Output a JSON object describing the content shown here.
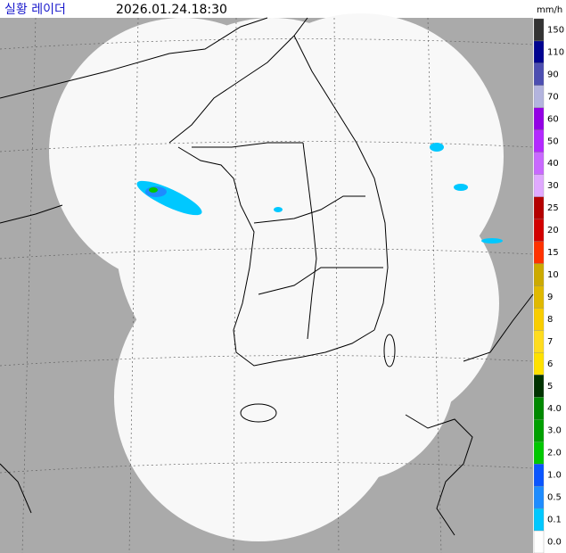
{
  "header": {
    "title": "실황 레이더",
    "timestamp": "2026.01.24.18:30",
    "unit": "mm/h"
  },
  "legend": [
    {
      "label": "150",
      "color": "#333333"
    },
    {
      "label": "110",
      "color": "#000390"
    },
    {
      "label": "90",
      "color": "#4c4eb1"
    },
    {
      "label": "70",
      "color": "#b3b4de"
    },
    {
      "label": "60",
      "color": "#9300e4"
    },
    {
      "label": "50",
      "color": "#b329ff"
    },
    {
      "label": "40",
      "color": "#c969ff"
    },
    {
      "label": "30",
      "color": "#e0a9ff"
    },
    {
      "label": "25",
      "color": "#b40000"
    },
    {
      "label": "20",
      "color": "#d20000"
    },
    {
      "label": "15",
      "color": "#ff3200"
    },
    {
      "label": "10",
      "color": "#ccaa00"
    },
    {
      "label": "9",
      "color": "#e0b900"
    },
    {
      "label": "8",
      "color": "#f9cd00"
    },
    {
      "label": "7",
      "color": "#ffdc1f"
    },
    {
      "label": "6",
      "color": "#ffe100"
    },
    {
      "label": "5",
      "color": "#003300"
    },
    {
      "label": "4.0",
      "color": "#008800"
    },
    {
      "label": "3.0",
      "color": "#00a000"
    },
    {
      "label": "2.0",
      "color": "#00c800"
    },
    {
      "label": "1.0",
      "color": "#0a55ff"
    },
    {
      "label": "0.5",
      "color": "#1e8cff"
    },
    {
      "label": "0.1",
      "color": "#00c8ff"
    },
    {
      "label": "0.0",
      "color": "#ffffff"
    }
  ]
}
